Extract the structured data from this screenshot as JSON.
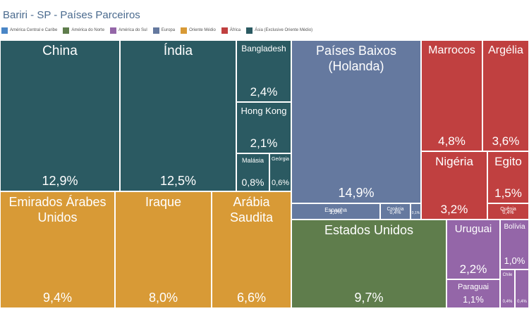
{
  "title": "Bariri - SP - Países Parceiros",
  "legend": [
    {
      "label": "América Central e Caribe",
      "color": "#4a86c6"
    },
    {
      "label": "América do Norte",
      "color": "#5f7d4c"
    },
    {
      "label": "América do Sul",
      "color": "#9466a8"
    },
    {
      "label": "Europa",
      "color": "#65799f"
    },
    {
      "label": "Oriente Médio",
      "color": "#d89a36"
    },
    {
      "label": "África",
      "color": "#c04040"
    },
    {
      "label": "Ásia (Exclusive Oriente Médio)",
      "color": "#2b5a62"
    }
  ],
  "chart_data": {
    "type": "treemap",
    "title": "Bariri - SP - Países Parceiros",
    "tiles": [
      {
        "name": "China",
        "value": "12,9%",
        "region": "Ásia (Exclusive Oriente Médio)"
      },
      {
        "name": "Índia",
        "value": "12,5%",
        "region": "Ásia (Exclusive Oriente Médio)"
      },
      {
        "name": "Bangladesh",
        "value": "2,4%",
        "region": "Ásia (Exclusive Oriente Médio)"
      },
      {
        "name": "Hong Kong",
        "value": "2,1%",
        "region": "Ásia (Exclusive Oriente Médio)"
      },
      {
        "name": "Malásia",
        "value": "0,8%",
        "region": "Ásia (Exclusive Oriente Médio)"
      },
      {
        "name": "Geórgia",
        "value": "0,6%",
        "region": "Ásia (Exclusive Oriente Médio)"
      },
      {
        "name": "Emirados Árabes Unidos",
        "value": "9,4%",
        "region": "Oriente Médio"
      },
      {
        "name": "Iraque",
        "value": "8,0%",
        "region": "Oriente Médio"
      },
      {
        "name": "Arábia Saudita",
        "value": "6,6%",
        "region": "Oriente Médio"
      },
      {
        "name": "Países Baixos (Holanda)",
        "value": "14,9%",
        "region": "Europa"
      },
      {
        "name": "Espanha",
        "value": "1,0%",
        "region": "Europa"
      },
      {
        "name": "Croácia",
        "value": "0,4%",
        "region": "Europa"
      },
      {
        "name": "",
        "value": "0,1%",
        "region": "Europa"
      },
      {
        "name": "Marrocos",
        "value": "4,8%",
        "region": "África"
      },
      {
        "name": "Argélia",
        "value": "3,6%",
        "region": "África"
      },
      {
        "name": "Nigéria",
        "value": "3,2%",
        "region": "África"
      },
      {
        "name": "Egito",
        "value": "1,5%",
        "region": "África"
      },
      {
        "name": "Quênia",
        "value": "0,4%",
        "region": "África"
      },
      {
        "name": "Estados Unidos",
        "value": "9,7%",
        "region": "América do Norte"
      },
      {
        "name": "Uruguai",
        "value": "2,2%",
        "region": "América do Sul"
      },
      {
        "name": "Bolívia",
        "value": "1,0%",
        "region": "América do Sul"
      },
      {
        "name": "Paraguai",
        "value": "1,1%",
        "region": "América do Sul"
      },
      {
        "name": "Chile",
        "value": "0,4%",
        "region": "América do Sul"
      },
      {
        "name": "",
        "value": "0,4%",
        "region": "América do Sul"
      }
    ]
  }
}
